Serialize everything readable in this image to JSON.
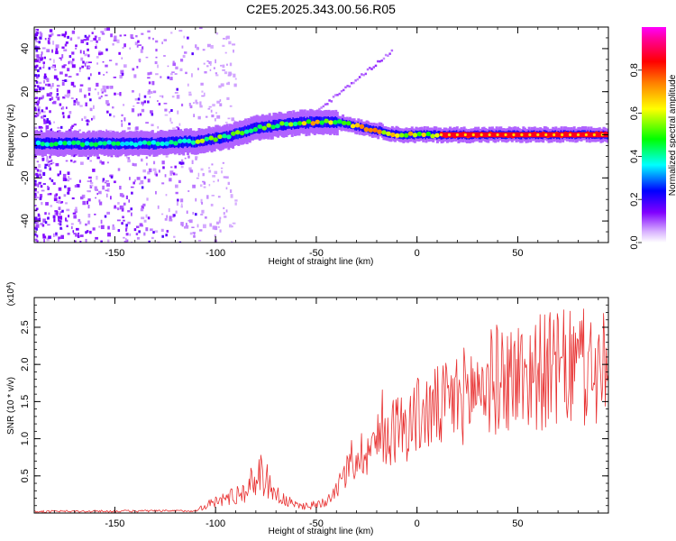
{
  "chart_data": [
    {
      "type": "heatmap",
      "title": "C2E5.2025.343.00.56.R05",
      "xlabel": "Height of straight line (km)",
      "ylabel": "Frequency (Hz)",
      "xlim": [
        -190,
        95
      ],
      "ylim": [
        -50,
        50
      ],
      "xticks": [
        -150,
        -100,
        -50,
        0,
        50
      ],
      "xtick_labels": [
        "-150",
        "-100",
        "-50",
        "0",
        "50"
      ],
      "yticks": [
        -40,
        -20,
        0,
        20,
        40
      ],
      "ytick_labels": [
        "-40",
        "-20",
        "0",
        "20",
        "40"
      ],
      "ridge_center_hz": {
        "x": [
          -190,
          -150,
          -130,
          -110,
          -95,
          -80,
          -65,
          -50,
          -40,
          -30,
          -20,
          -10,
          -5,
          0,
          10,
          30,
          60,
          95
        ],
        "y": [
          -4,
          -4,
          -4,
          -3,
          -1,
          3,
          5,
          6,
          6,
          4,
          2,
          0,
          0,
          0,
          0,
          0,
          0,
          0
        ]
      },
      "colorbar": {
        "label": "Normalized spectral amplitude",
        "range": [
          0,
          1
        ],
        "ticks": [
          0.0,
          0.2,
          0.4,
          0.6,
          0.8
        ],
        "tick_labels": [
          "0.0",
          "0.2",
          "0.4",
          "0.6",
          "0.8"
        ],
        "colors": [
          "#ffffff",
          "#8000ff",
          "#0000ff",
          "#00ffff",
          "#00ff00",
          "#ffff00",
          "#ff8000",
          "#ff0000",
          "#ff00ff"
        ]
      }
    },
    {
      "type": "line",
      "xlabel": "Height of straight line (km)",
      "ylabel": "SNR (10 * v/v)",
      "yscale_label": "(x10",
      "yscale_exp": "4",
      "yscale_close": ")",
      "xlim": [
        -190,
        95
      ],
      "ylim": [
        0,
        2.9
      ],
      "xticks": [
        -150,
        -100,
        -50,
        0,
        50
      ],
      "xtick_labels": [
        "-150",
        "-100",
        "-50",
        "0",
        "50"
      ],
      "yticks": [
        0.5,
        1.0,
        1.5,
        2.0,
        2.5
      ],
      "ytick_labels": [
        "0.5",
        "1.0",
        "1.5",
        "2.0",
        "2.5"
      ],
      "series": [
        {
          "name": "SNR",
          "color": "#e83030",
          "envelope": {
            "x": [
              -190,
              -110,
              -105,
              -95,
              -85,
              -78,
              -72,
              -68,
              -60,
              -52,
              -46,
              -40,
              -35,
              -30,
              -25,
              -20,
              -15,
              -10,
              -5,
              0,
              5,
              10,
              15,
              20,
              25,
              30,
              40,
              50,
              60,
              70,
              80,
              90,
              95
            ],
            "y": [
              0.02,
              0.03,
              0.1,
              0.2,
              0.3,
              0.55,
              0.35,
              0.2,
              0.1,
              0.1,
              0.15,
              0.35,
              0.55,
              0.75,
              0.85,
              0.95,
              1.05,
              1.15,
              1.2,
              1.3,
              1.35,
              1.4,
              1.45,
              1.55,
              1.6,
              1.7,
              1.8,
              1.85,
              1.9,
              1.92,
              1.95,
              1.9,
              1.9
            ]
          }
        }
      ]
    }
  ]
}
